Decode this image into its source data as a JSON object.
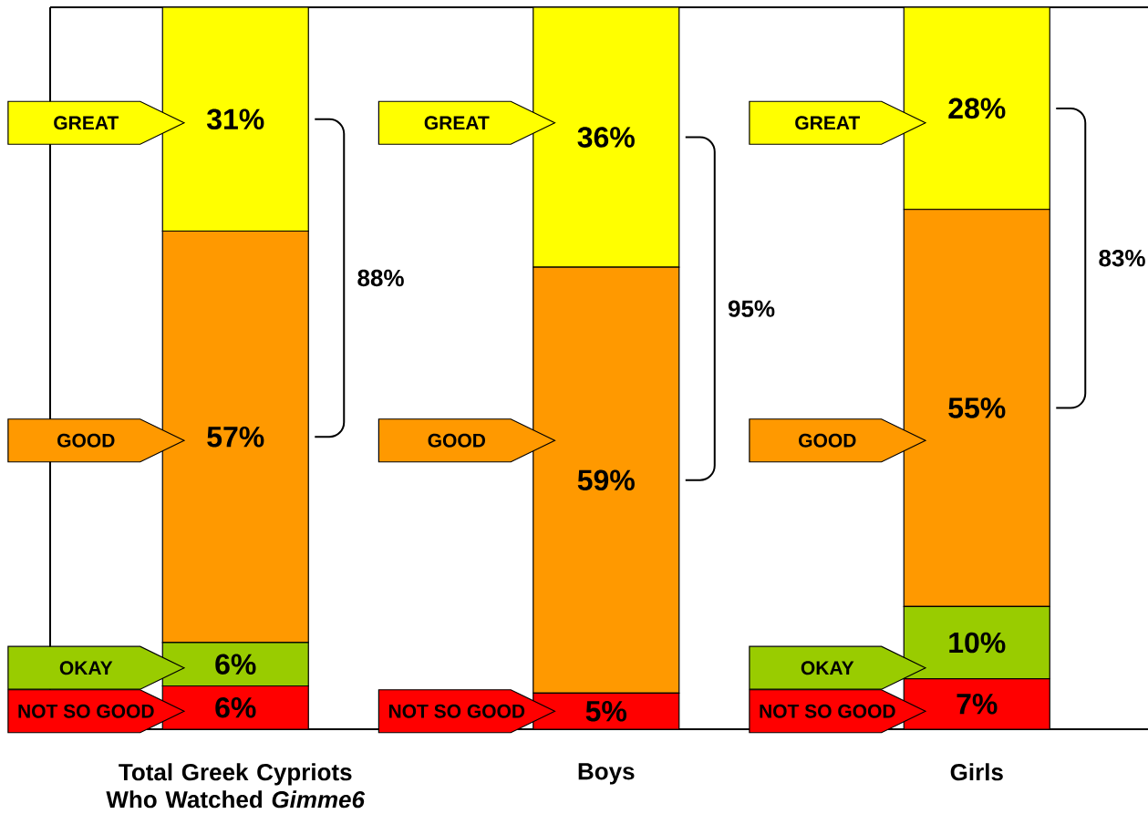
{
  "chart_data": {
    "type": "bar",
    "stacked": true,
    "categories": [
      "Total Greek Cypriots Who Watched *Gimme6*",
      "Boys",
      "Girls"
    ],
    "series": [
      {
        "name": "NOT SO GOOD",
        "color": "#ff0000",
        "values": [
          6,
          5,
          7
        ],
        "value_labels": [
          "6%",
          "5%",
          "7%"
        ]
      },
      {
        "name": "OKAY",
        "color": "#99cc00",
        "values": [
          6,
          0,
          10
        ],
        "value_labels": [
          "6%",
          null,
          "10%"
        ]
      },
      {
        "name": "GOOD",
        "color": "#ff9900",
        "values": [
          57,
          59,
          55
        ],
        "value_labels": [
          "57%",
          "59%",
          "55%"
        ]
      },
      {
        "name": "GREAT",
        "color": "#ffff00",
        "values": [
          31,
          36,
          28
        ],
        "value_labels": [
          "31%",
          "36%",
          "28%"
        ]
      }
    ],
    "tick_labels": "x",
    "annotations": [
      "88%",
      "95%",
      "83%"
    ]
  }
}
